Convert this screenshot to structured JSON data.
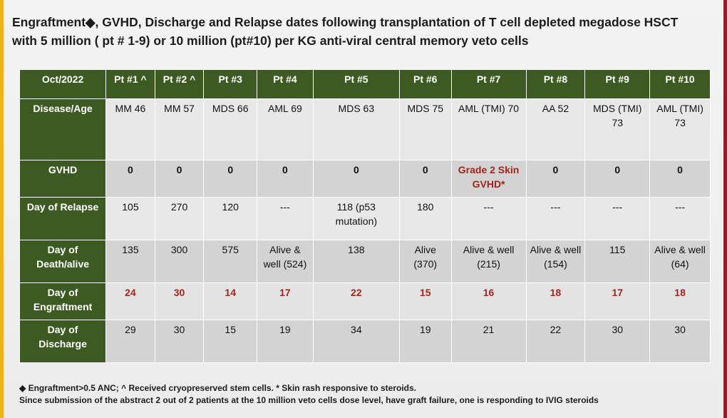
{
  "title_line1": "Engraftment◆, GVHD, Discharge and Relapse dates following transplantation of T cell depleted megadose HSCT",
  "title_line2": "with 5 million ( pt # 1-9) or 10 million (pt#10) per KG anti-viral central memory veto cells",
  "table": {
    "corner": "Oct/2022",
    "columns": [
      "Pt #1 ^",
      "Pt #2 ^",
      "Pt #3",
      "Pt #4",
      "Pt #5",
      "Pt #6",
      "Pt #7",
      "Pt #8",
      "Pt #9",
      "Pt #10"
    ],
    "rows": [
      {
        "label": "Disease/Age",
        "cells": [
          "MM 46",
          "MM 57",
          "MDS 66",
          "AML 69",
          "MDS 63",
          "MDS 75",
          "AML (TMI) 70",
          "AA 52",
          "MDS (TMI) 73",
          "AML (TMI) 73"
        ]
      },
      {
        "label": "GVHD",
        "cells": [
          "0",
          "0",
          "0",
          "0",
          "0",
          "0",
          "Grade 2 Skin GVHD*",
          "0",
          "0",
          "0"
        ]
      },
      {
        "label": "Day of Relapse",
        "cells": [
          "105",
          "270",
          "120",
          "---",
          "118 (p53 mutation)",
          "180",
          "---",
          "---",
          "---",
          "---"
        ]
      },
      {
        "label": "Day of Death/alive",
        "cells": [
          "135",
          "300",
          "575",
          "Alive & well (524)",
          "138",
          "Alive (370)",
          "Alive & well (215)",
          "Alive & well (154)",
          "115",
          "Alive & well (64)"
        ]
      },
      {
        "label": "Day of Engraftment",
        "cells": [
          "24",
          "30",
          "14",
          "17",
          "22",
          "15",
          "16",
          "18",
          "17",
          "18"
        ]
      },
      {
        "label": "Day of Discharge",
        "cells": [
          "29",
          "30",
          "15",
          "19",
          "34",
          "19",
          "21",
          "22",
          "30",
          "30"
        ]
      }
    ]
  },
  "footnote_line1": "◆ Engraftment>0.5 ANC;   ^ Received cryopreserved stem cells. * Skin rash responsive to steroids.",
  "footnote_line2": "Since submission of the abstract 2 out of 2 patients at the 10 million veto cells dose level, have graft failure, one is responding to IVIG steroids",
  "colors": {
    "header_green": "#3d5a22",
    "accent_red": "#a0261c",
    "frame_red": "#b3101e",
    "frame_yellow": "#f0b21a"
  }
}
